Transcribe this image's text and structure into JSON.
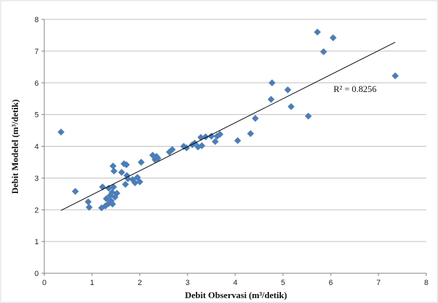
{
  "chart_data": {
    "type": "scatter",
    "title": "",
    "xlabel": "Debit Observasi (m³/detik)",
    "ylabel": "Debit Modelel (m³/detik)",
    "xlim": [
      0,
      8
    ],
    "ylim": [
      0,
      8
    ],
    "xticks": [
      0,
      1,
      2,
      3,
      4,
      5,
      6,
      7,
      8
    ],
    "yticks": [
      0,
      1,
      2,
      3,
      4,
      5,
      6,
      7,
      8
    ],
    "grid": "horizontal",
    "marker": "diamond",
    "marker_color": "#4a7ebb",
    "trendline": {
      "x": [
        0.35,
        7.35
      ],
      "y": [
        1.98,
        7.28
      ],
      "color": "#000000"
    },
    "annotation": "R² = 0.8256",
    "series": [
      {
        "points": [
          [
            0.35,
            4.45
          ],
          [
            0.65,
            2.58
          ],
          [
            0.92,
            2.25
          ],
          [
            0.94,
            2.08
          ],
          [
            1.2,
            2.06
          ],
          [
            1.22,
            2.72
          ],
          [
            1.28,
            2.12
          ],
          [
            1.3,
            2.35
          ],
          [
            1.35,
            2.68
          ],
          [
            1.35,
            2.2
          ],
          [
            1.38,
            2.45
          ],
          [
            1.4,
            2.28
          ],
          [
            1.42,
            2.55
          ],
          [
            1.43,
            2.18
          ],
          [
            1.44,
            3.38
          ],
          [
            1.45,
            2.72
          ],
          [
            1.46,
            3.22
          ],
          [
            1.48,
            2.4
          ],
          [
            1.52,
            2.52
          ],
          [
            1.62,
            3.18
          ],
          [
            1.67,
            3.45
          ],
          [
            1.7,
            2.8
          ],
          [
            1.72,
            3.42
          ],
          [
            1.73,
            3.08
          ],
          [
            1.75,
            2.98
          ],
          [
            1.85,
            2.95
          ],
          [
            1.9,
            2.85
          ],
          [
            1.95,
            3.02
          ],
          [
            2.0,
            2.88
          ],
          [
            2.03,
            3.5
          ],
          [
            2.27,
            3.72
          ],
          [
            2.32,
            3.58
          ],
          [
            2.35,
            3.68
          ],
          [
            2.38,
            3.62
          ],
          [
            2.62,
            3.82
          ],
          [
            2.68,
            3.9
          ],
          [
            2.92,
            4.0
          ],
          [
            2.98,
            3.95
          ],
          [
            3.1,
            4.05
          ],
          [
            3.15,
            4.1
          ],
          [
            3.22,
            3.98
          ],
          [
            3.28,
            4.28
          ],
          [
            3.3,
            4.02
          ],
          [
            3.38,
            4.3
          ],
          [
            3.5,
            4.32
          ],
          [
            3.58,
            4.15
          ],
          [
            3.62,
            4.32
          ],
          [
            3.68,
            4.38
          ],
          [
            4.05,
            4.18
          ],
          [
            4.32,
            4.4
          ],
          [
            4.42,
            4.88
          ],
          [
            4.75,
            5.48
          ],
          [
            4.77,
            6.0
          ],
          [
            5.1,
            5.78
          ],
          [
            5.17,
            5.25
          ],
          [
            5.53,
            4.95
          ],
          [
            5.72,
            7.6
          ],
          [
            5.85,
            6.98
          ],
          [
            6.05,
            7.42
          ],
          [
            7.35,
            6.22
          ]
        ]
      }
    ]
  }
}
